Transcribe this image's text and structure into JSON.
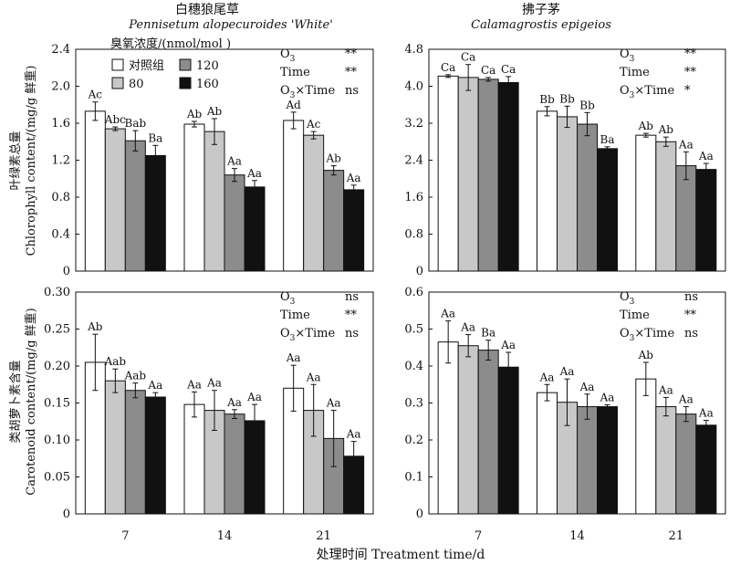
{
  "xlabel": "处理时间 Treatment time/d",
  "row_labels": [
    {
      "cn": "叶绿素总量",
      "en": "Chlorophyll content/(mg/g 鲜重)"
    },
    {
      "cn": "类胡萝卜素含量",
      "en": "Carotenoid content/(mg/g 鲜重)"
    }
  ],
  "columns": [
    {
      "title_cn": "白穗狼尾草",
      "title_en": "Pennisetum alopecuroides 'White'"
    },
    {
      "title_cn": "拂子茅",
      "title_en": "Calamagrostis epigeios"
    }
  ],
  "legend": {
    "title": "臭氧浓度/(nmol/mol )",
    "items": [
      {
        "label": "对照组",
        "color": "#ffffff"
      },
      {
        "label": "120",
        "color": "#8c8c8c"
      },
      {
        "label": "80",
        "color": "#c8c8c8"
      },
      {
        "label": "160",
        "color": "#111111"
      }
    ]
  },
  "chart_data": [
    {
      "type": "bar",
      "id": "chl-pennisetum",
      "categories": [
        "7",
        "14",
        "21"
      ],
      "series_colors": [
        "#ffffff",
        "#c8c8c8",
        "#8c8c8c",
        "#111111"
      ],
      "ylim": [
        0,
        2.4
      ],
      "yticks": [
        "0",
        "0.4",
        "0.8",
        "1.2",
        "1.6",
        "2.0",
        "2.4"
      ],
      "values": [
        [
          1.73,
          1.54,
          1.41,
          1.25
        ],
        [
          1.59,
          1.51,
          1.04,
          0.91
        ],
        [
          1.63,
          1.47,
          1.09,
          0.88
        ]
      ],
      "errors": [
        [
          0.1,
          0.02,
          0.11,
          0.11
        ],
        [
          0.03,
          0.14,
          0.07,
          0.07
        ],
        [
          0.09,
          0.04,
          0.05,
          0.05
        ]
      ],
      "labels": [
        [
          "Ac",
          "Abc",
          "Bab",
          "Ba"
        ],
        [
          "Ab",
          "Ab",
          "Aa",
          "Aa"
        ],
        [
          "Ad",
          "Ac",
          "Ab",
          "Aa"
        ]
      ],
      "stats": [
        {
          "term": "O3",
          "sig": "**"
        },
        {
          "term": "Time",
          "sig": "**"
        },
        {
          "term": "O3×Time",
          "sig": "ns"
        }
      ]
    },
    {
      "type": "bar",
      "id": "chl-calamagrostis",
      "categories": [
        "7",
        "14",
        "21"
      ],
      "series_colors": [
        "#ffffff",
        "#c8c8c8",
        "#8c8c8c",
        "#111111"
      ],
      "ylim": [
        0,
        4.8
      ],
      "yticks": [
        "0",
        "0.8",
        "1.6",
        "2.4",
        "3.2",
        "4.0",
        "4.8"
      ],
      "values": [
        [
          4.22,
          4.19,
          4.15,
          4.08
        ],
        [
          3.46,
          3.34,
          3.18,
          2.65
        ],
        [
          2.94,
          2.8,
          2.28,
          2.2
        ]
      ],
      "errors": [
        [
          0.03,
          0.28,
          0.04,
          0.13
        ],
        [
          0.1,
          0.23,
          0.25,
          0.04
        ],
        [
          0.04,
          0.1,
          0.3,
          0.13
        ]
      ],
      "labels": [
        [
          "Ca",
          "Ca",
          "Ca",
          "Ca"
        ],
        [
          "Bb",
          "Bb",
          "Bb",
          "Ba"
        ],
        [
          "Ab",
          "Ab",
          "Aa",
          "Aa"
        ]
      ],
      "stats": [
        {
          "term": "O3",
          "sig": "**"
        },
        {
          "term": "Time",
          "sig": "**"
        },
        {
          "term": "O3×Time",
          "sig": "*"
        }
      ]
    },
    {
      "type": "bar",
      "id": "car-pennisetum",
      "categories": [
        "7",
        "14",
        "21"
      ],
      "series_colors": [
        "#ffffff",
        "#c8c8c8",
        "#8c8c8c",
        "#111111"
      ],
      "ylim": [
        0,
        0.3
      ],
      "yticks": [
        "0",
        "0.05",
        "0.10",
        "0.15",
        "0.20",
        "0.25",
        "0.30"
      ],
      "values": [
        [
          0.205,
          0.18,
          0.167,
          0.158
        ],
        [
          0.148,
          0.14,
          0.135,
          0.126
        ],
        [
          0.17,
          0.14,
          0.102,
          0.078
        ]
      ],
      "errors": [
        [
          0.038,
          0.016,
          0.01,
          0.006
        ],
        [
          0.017,
          0.027,
          0.006,
          0.022
        ],
        [
          0.031,
          0.035,
          0.038,
          0.02
        ]
      ],
      "labels": [
        [
          "Ab",
          "Aab",
          "Aab",
          "Aa"
        ],
        [
          "Aa",
          "Aa",
          "Aa",
          "Aa"
        ],
        [
          "Aa",
          "Aa",
          "Aa",
          "Aa"
        ]
      ],
      "stats": [
        {
          "term": "O3",
          "sig": "ns"
        },
        {
          "term": "Time",
          "sig": "**"
        },
        {
          "term": "O3×Time",
          "sig": "ns"
        }
      ]
    },
    {
      "type": "bar",
      "id": "car-calamagrostis",
      "categories": [
        "7",
        "14",
        "21"
      ],
      "series_colors": [
        "#ffffff",
        "#c8c8c8",
        "#8c8c8c",
        "#111111"
      ],
      "ylim": [
        0,
        0.6
      ],
      "yticks": [
        "0",
        "0.1",
        "0.2",
        "0.3",
        "0.4",
        "0.5",
        "0.6"
      ],
      "values": [
        [
          0.465,
          0.455,
          0.443,
          0.397
        ],
        [
          0.328,
          0.302,
          0.29,
          0.29
        ],
        [
          0.365,
          0.29,
          0.27,
          0.24
        ]
      ],
      "errors": [
        [
          0.057,
          0.03,
          0.027,
          0.04
        ],
        [
          0.022,
          0.063,
          0.034,
          0.005
        ],
        [
          0.045,
          0.025,
          0.02,
          0.013
        ]
      ],
      "labels": [
        [
          "Aa",
          "Aa",
          "Ba",
          "Aa"
        ],
        [
          "Aa",
          "Aa",
          "Aa",
          "Aa"
        ],
        [
          "Ab",
          "Aa",
          "Aa",
          "Aa"
        ]
      ],
      "stats": [
        {
          "term": "O3",
          "sig": "ns"
        },
        {
          "term": "Time",
          "sig": "**"
        },
        {
          "term": "O3×Time",
          "sig": "ns"
        }
      ]
    }
  ]
}
